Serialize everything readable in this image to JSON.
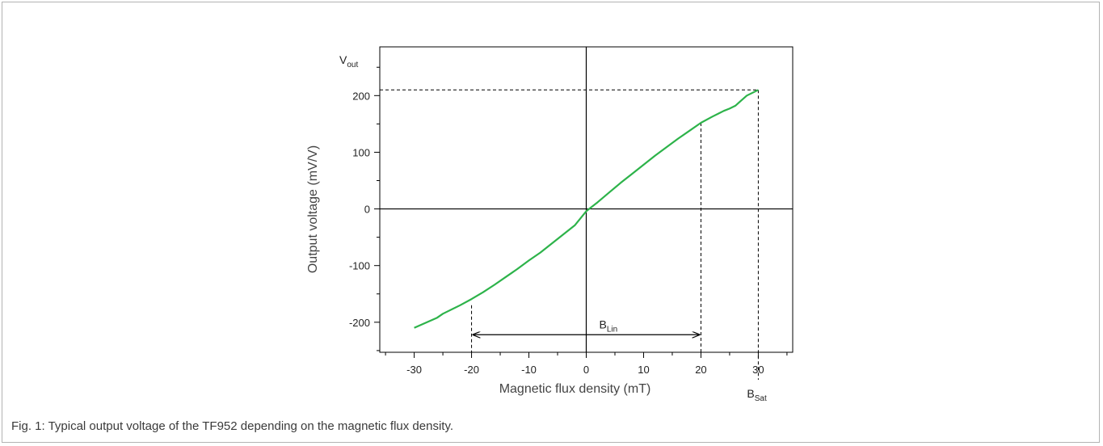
{
  "caption": "Fig. 1: Typical output voltage of the TF952 depending on the magnetic flux density.",
  "chart_data": {
    "type": "line",
    "title": "",
    "xlabel": "Magnetic flux density (mT)",
    "ylabel": "Output voltage (mV/V)",
    "xlim": [
      -36,
      36
    ],
    "ylim": [
      -253,
      286
    ],
    "x_ticks": [
      -30,
      -20,
      -10,
      0,
      10,
      20,
      30
    ],
    "x_tick_labels": [
      "-30",
      "-20",
      "-10",
      "0",
      "10",
      "20",
      "30"
    ],
    "y_ticks": [
      -200,
      -100,
      0,
      100,
      200
    ],
    "y_tick_labels": [
      "-200",
      "-100",
      "0",
      "100",
      "200"
    ],
    "grid": false,
    "legend": "none",
    "series_color": "#2db34a",
    "series": [
      {
        "x": [
          -30,
          -28,
          -26,
          -25,
          -24,
          -22,
          -20,
          -18,
          -16,
          -14,
          -12,
          -10,
          -8,
          -6,
          -4,
          -2,
          0,
          2,
          4,
          6,
          8,
          10,
          12,
          14,
          16,
          18,
          20,
          22,
          24,
          25,
          26,
          27,
          28,
          29,
          30
        ],
        "y": [
          -210,
          -201,
          -192,
          -185,
          -180,
          -170,
          -159,
          -147,
          -134,
          -120,
          -106,
          -91,
          -77,
          -61,
          -45,
          -29,
          -4,
          12,
          29,
          46,
          62,
          78,
          94,
          109,
          124,
          138,
          152,
          163,
          173,
          177,
          182,
          191,
          200,
          205,
          210
        ]
      }
    ],
    "annotations": {
      "vout": {
        "main": "V",
        "sub": "out",
        "y": 210
      },
      "blin": {
        "main": "B",
        "sub": "Lin",
        "x_start": -20,
        "x_end": 20,
        "y": -222
      },
      "bsat": {
        "main": "B",
        "sub": "Sat",
        "x": 30
      }
    }
  }
}
